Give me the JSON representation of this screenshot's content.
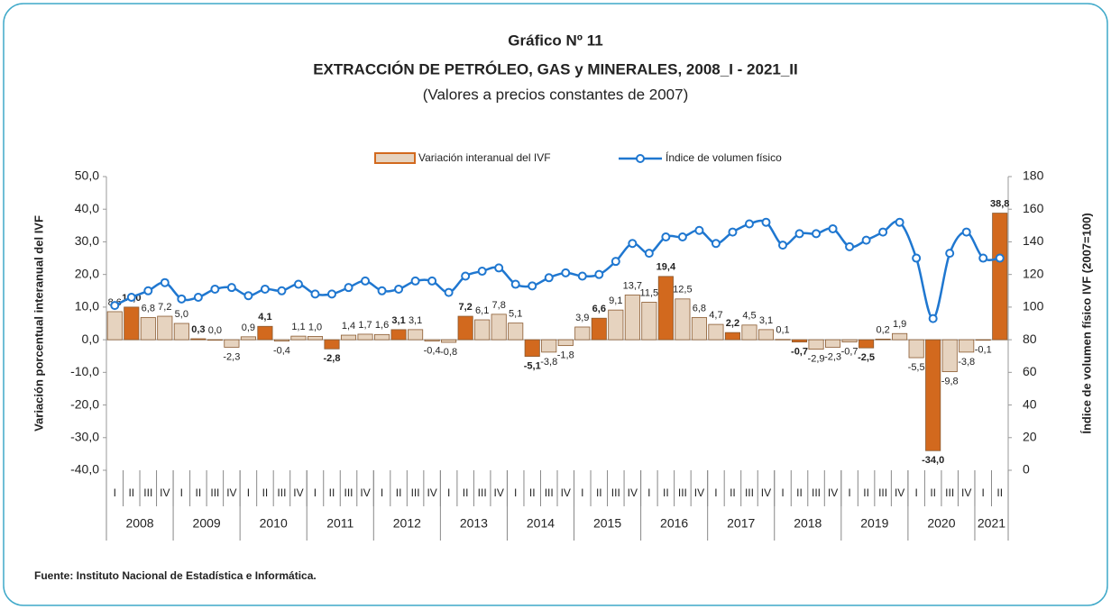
{
  "chart_data": {
    "type": "bar_line",
    "title": "Gráfico Nº 11",
    "subtitle": "EXTRACCIÓN DE PETRÓLEO, GAS y MINERALES, 2008_I - 2021_II",
    "subtitle2": "(Valores a precios constantes de 2007)",
    "ylabel": "Variación porcentual interanual del IVF",
    "y2label": "Índice de volumen físico IVF (2007=100)",
    "source": "Fuente: Instituto Nacional de Estadística e Informática.",
    "categories": [
      "I",
      "II",
      "III",
      "IV",
      "I",
      "II",
      "III",
      "IV",
      "I",
      "II",
      "III",
      "IV",
      "I",
      "II",
      "III",
      "IV",
      "I",
      "II",
      "III",
      "IV",
      "I",
      "II",
      "III",
      "IV",
      "I",
      "II",
      "III",
      "IV",
      "I",
      "II",
      "III",
      "IV",
      "I",
      "II",
      "III",
      "IV",
      "I",
      "II",
      "III",
      "IV",
      "I",
      "II",
      "III",
      "IV",
      "I",
      "II",
      "III",
      "IV",
      "I",
      "II",
      "III",
      "IV",
      "I",
      "II"
    ],
    "years": [
      "2008",
      "2009",
      "2010",
      "2011",
      "2012",
      "2013",
      "2014",
      "2015",
      "2016",
      "2017",
      "2018",
      "2019",
      "2020",
      "2021"
    ],
    "series": [
      {
        "name": "Variación interanual del IVF",
        "color": "#e6d3bf",
        "highlight_color": "#d2691e",
        "values": [
          8.6,
          10.0,
          6.8,
          7.2,
          5.0,
          0.3,
          0.0,
          -2.3,
          0.9,
          4.1,
          -0.4,
          1.1,
          1.0,
          -2.8,
          1.4,
          1.7,
          1.6,
          3.1,
          3.1,
          -0.4,
          -0.8,
          7.2,
          6.1,
          7.8,
          5.1,
          -5.1,
          -3.8,
          -1.8,
          3.9,
          6.6,
          9.1,
          13.7,
          11.5,
          19.4,
          12.5,
          6.8,
          4.7,
          2.2,
          4.5,
          3.1,
          0.1,
          -0.7,
          -2.9,
          -2.3,
          -0.7,
          -2.5,
          0.2,
          1.9,
          -5.5,
          -34.0,
          -9.8,
          -3.8,
          -0.1,
          38.8
        ],
        "value_labels": [
          "8,6",
          "10,0",
          "6,8",
          "7,2",
          "5,0",
          "0,3",
          "0,0",
          "-2,3",
          "0,9",
          "4,1",
          "-0,4",
          "1,1",
          "1,0",
          "-2,8",
          "1,4",
          "1,7",
          "1,6",
          "3,1",
          "3,1",
          "-0,4",
          "-0,8",
          "7,2",
          "6,1",
          "7,8",
          "5,1",
          "-5,1",
          "-3,8",
          "-1,8",
          "3,9",
          "6,6",
          "9,1",
          "13,7",
          "11,5",
          "19,4",
          "12,5",
          "6,8",
          "4,7",
          "2,2",
          "4,5",
          "3,1",
          "0,1",
          "-0,7",
          "-2,9",
          "-2,3",
          "-0,7",
          "-2,5",
          "0,2",
          "1,9",
          "-5,5",
          "-34,0",
          "-9,8",
          "-3,8",
          "-0,1",
          "38,8"
        ],
        "highlight": [
          "II"
        ]
      },
      {
        "name": "Índice de volumen físico",
        "color": "#1f77d0",
        "axis": "y2",
        "values": [
          101,
          106,
          110,
          115,
          105,
          106,
          111,
          112,
          107,
          111,
          110,
          114,
          108,
          108,
          112,
          116,
          110,
          111,
          116,
          116,
          109,
          119,
          122,
          124,
          114,
          113,
          118,
          121,
          119,
          120,
          128,
          139,
          133,
          143,
          143,
          147,
          139,
          146,
          151,
          152,
          138,
          145,
          145,
          148,
          137,
          141,
          146,
          152,
          130,
          93,
          133,
          146,
          130,
          130
        ]
      }
    ],
    "ylim": [
      -40,
      50
    ],
    "yticks": [
      {
        "value": -40,
        "label": "-40,0"
      },
      {
        "value": -30,
        "label": "-30,0"
      },
      {
        "value": -20,
        "label": "-20,0"
      },
      {
        "value": -10,
        "label": "-10,0"
      },
      {
        "value": 0,
        "label": "0,0"
      },
      {
        "value": 10,
        "label": "10,0"
      },
      {
        "value": 20,
        "label": "20,0"
      },
      {
        "value": 30,
        "label": "30,0"
      },
      {
        "value": 40,
        "label": "40,0"
      },
      {
        "value": 50,
        "label": "50,0"
      }
    ],
    "y2lim": [
      0,
      180
    ],
    "y2ticks": [
      0,
      20,
      40,
      60,
      80,
      100,
      120,
      140,
      160,
      180
    ],
    "legend": "top"
  }
}
